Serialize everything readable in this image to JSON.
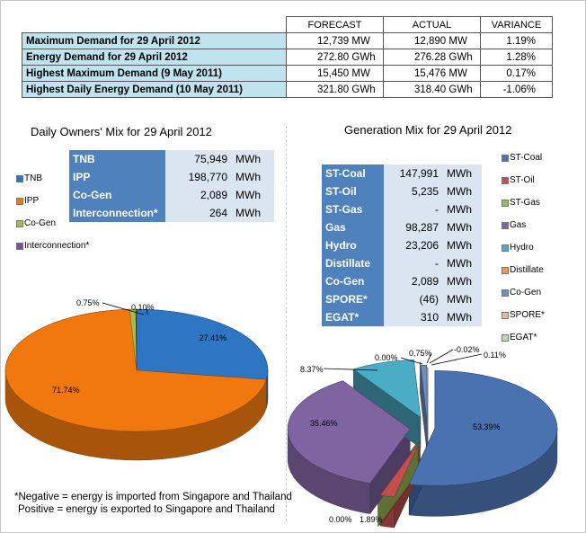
{
  "demand_table": {
    "headers": [
      "",
      "FORECAST",
      "ACTUAL",
      "VARIANCE"
    ],
    "rows": [
      {
        "label": "Maximum Demand for 29 April 2012",
        "forecast": "12,739",
        "forecast_unit": "MW",
        "actual": "12,890",
        "actual_unit": "MW",
        "variance": "1.19%"
      },
      {
        "label": "Energy Demand for 29 April 2012",
        "forecast": "272.80",
        "forecast_unit": "GWh",
        "actual": "276.28",
        "actual_unit": "GWh",
        "variance": "1.28%"
      },
      {
        "label": "Highest Maximum Demand (9 May 2011)",
        "forecast": "15,450",
        "forecast_unit": "MW",
        "actual": "15,476",
        "actual_unit": "MW",
        "variance": "0.17%"
      },
      {
        "label": "Highest Daily Energy Demand (10 May 2011)",
        "forecast": "321.80",
        "forecast_unit": "GWh",
        "actual": "318.40",
        "actual_unit": "GWh",
        "variance": "-1.06%"
      }
    ]
  },
  "owners_box": {
    "rows": [
      {
        "label": "TNB",
        "value": "75,949",
        "unit": "MWh"
      },
      {
        "label": "IPP",
        "value": "198,770",
        "unit": "MWh"
      },
      {
        "label": "Co-Gen",
        "value": "2,089",
        "unit": "MWh"
      },
      {
        "label": "Interconnection*",
        "value": "264",
        "unit": "MWh"
      }
    ]
  },
  "generation_box": {
    "rows": [
      {
        "label": "ST-Coal",
        "value": "147,991",
        "unit": "MWh"
      },
      {
        "label": "ST-Oil",
        "value": "5,235",
        "unit": "MWh"
      },
      {
        "label": "ST-Gas",
        "value": "-",
        "unit": "MWh"
      },
      {
        "label": "Gas",
        "value": "98,287",
        "unit": "MWh"
      },
      {
        "label": "Hydro",
        "value": "23,206",
        "unit": "MWh"
      },
      {
        "label": "Distillate",
        "value": "-",
        "unit": "MWh"
      },
      {
        "label": "Co-Gen",
        "value": "2,089",
        "unit": "MWh"
      },
      {
        "label": "SPORE*",
        "value": "(46)",
        "unit": "MWh"
      },
      {
        "label": "EGAT*",
        "value": "310",
        "unit": "MWh"
      }
    ]
  },
  "chart_data": [
    {
      "type": "pie",
      "title": "Daily Owners' Mix for 29 April 2012",
      "legend_position": "left",
      "slices": [
        {
          "name": "TNB",
          "value": 27.41,
          "label": "27.41%",
          "color": "#2e75c4"
        },
        {
          "name": "IPP",
          "value": 71.74,
          "label": "71.74%",
          "color": "#f0780f"
        },
        {
          "name": "Co-Gen",
          "value": 0.75,
          "label": "0.75%",
          "color": "#a6bd4b"
        },
        {
          "name": "Interconnection*",
          "value": 0.1,
          "label": "0.10%",
          "color": "#7a4fa3"
        }
      ]
    },
    {
      "type": "pie",
      "title": "Generation Mix for 29 April 2012",
      "legend_position": "right",
      "slices": [
        {
          "name": "ST-Coal",
          "value": 53.39,
          "label": "53.39%",
          "color": "#4a72b0"
        },
        {
          "name": "ST-Oil",
          "value": 1.89,
          "label": "1.89%",
          "color": "#c0504d"
        },
        {
          "name": "ST-Gas",
          "value": 0.0,
          "label": "0.00%",
          "color": "#9bbb59"
        },
        {
          "name": "Gas",
          "value": 35.46,
          "label": "35.46%",
          "color": "#8064a2"
        },
        {
          "name": "Hydro",
          "value": 8.37,
          "label": "8.37%",
          "color": "#4bacc6"
        },
        {
          "name": "Distillate",
          "value": 0.0,
          "label": "0.00%",
          "color": "#f79646"
        },
        {
          "name": "Co-Gen",
          "value": 0.75,
          "label": "0.75%",
          "color": "#6e8fc4"
        },
        {
          "name": "SPORE*",
          "value": -0.02,
          "label": "-0.02%",
          "color": "#e8b8a8"
        },
        {
          "name": "EGAT*",
          "value": 0.11,
          "label": "0.11%",
          "color": "#c6d8a8"
        }
      ]
    }
  ],
  "footnote": {
    "line1": "*Negative = energy is imported from Singapore and Thailand",
    "line2": "Positive = energy is exported to Singapore and Thailand"
  }
}
